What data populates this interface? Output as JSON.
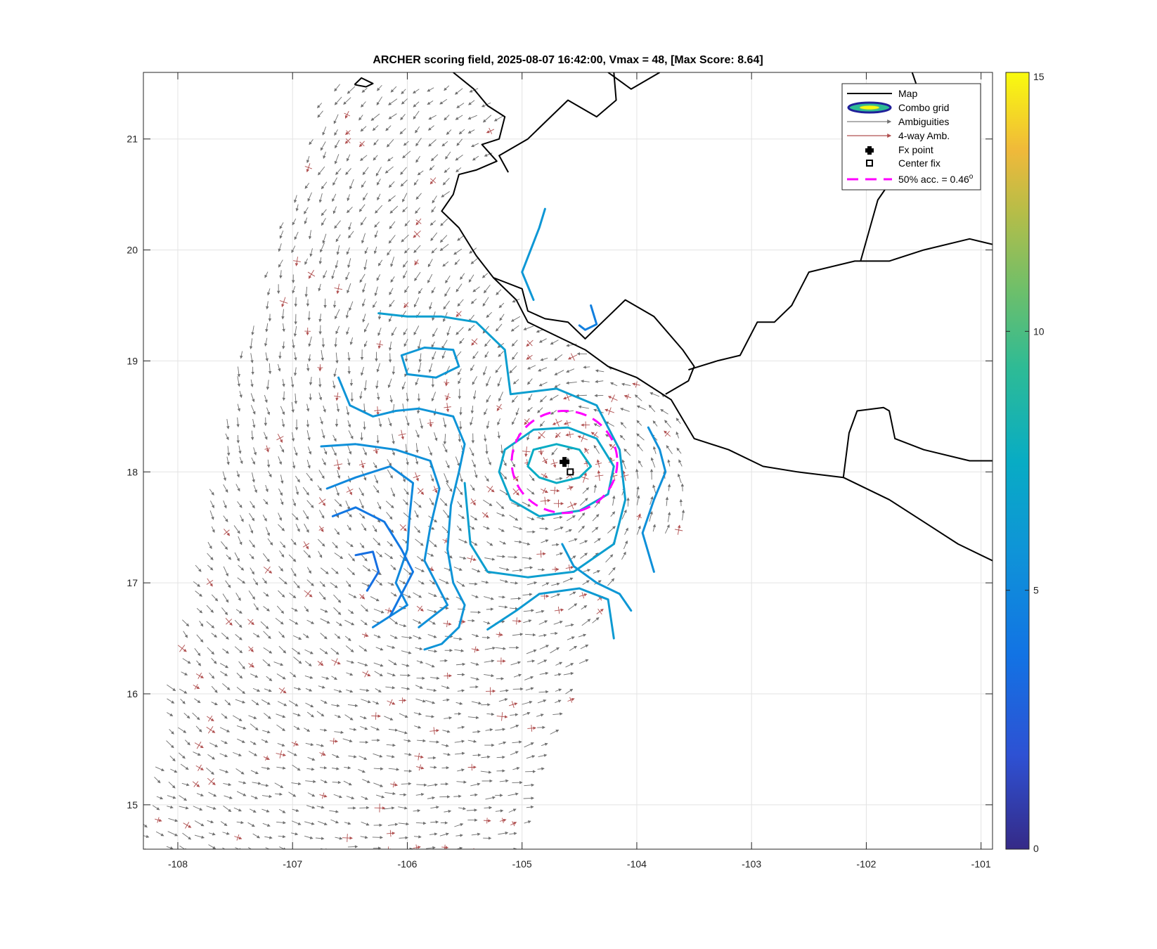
{
  "chart_data": {
    "type": "map",
    "title": "ARCHER scoring field, 2025-08-07 16:42:00, Vmax = 48, [Max Score: 8.64]",
    "xlim": [
      -108.3,
      -100.9
    ],
    "ylim": [
      14.6,
      21.6
    ],
    "xticks": [
      -108,
      -107,
      -106,
      -105,
      -104,
      -103,
      -102,
      -101
    ],
    "xtick_labels": [
      "-108",
      "-107",
      "-106",
      "-105",
      "-104",
      "-103",
      "-102",
      "-101"
    ],
    "yticks": [
      15,
      16,
      17,
      18,
      19,
      20,
      21
    ],
    "ytick_labels": [
      "15",
      "16",
      "17",
      "18",
      "19",
      "20",
      "21"
    ],
    "grid": true,
    "legend": {
      "placement": "top-right",
      "entries": [
        {
          "label": "Map",
          "style": "line",
          "color": "#000000"
        },
        {
          "label": "Combo grid",
          "style": "ellipse",
          "color": "#20209a"
        },
        {
          "label": "Ambiguities",
          "style": "arrow",
          "color": "#808080"
        },
        {
          "label": "4-way Amb.",
          "style": "arrow",
          "color": "#b05050"
        },
        {
          "label": "Fx point",
          "style": "plus",
          "color": "#000000"
        },
        {
          "label": "Center fix",
          "style": "square",
          "color": "#000000"
        },
        {
          "label": "50% acc. = 0.46",
          "superscript": "o",
          "style": "dash",
          "color": "#ff00ff"
        }
      ]
    },
    "fx_point": {
      "lon": -104.63,
      "lat": 18.09
    },
    "center_fix": {
      "lon": -104.58,
      "lat": 18.0
    },
    "accuracy_circle": {
      "lon": -104.63,
      "lat": 18.09,
      "radius_deg": 0.46,
      "color": "#ff00ff"
    },
    "colorbar": {
      "min": 0,
      "max": 15,
      "ticks": [
        0,
        5,
        10,
        15
      ],
      "tick_labels": [
        "0",
        "5",
        "10",
        "15"
      ],
      "colormap": "parula"
    },
    "coastline": [
      [
        -105.6,
        21.6
      ],
      [
        -105.42,
        21.45
      ],
      [
        -105.3,
        21.3
      ],
      [
        -105.15,
        21.2
      ],
      [
        -105.2,
        21.0
      ],
      [
        -105.35,
        20.95
      ],
      [
        -105.22,
        20.8
      ],
      [
        -105.4,
        20.72
      ],
      [
        -105.55,
        20.68
      ],
      [
        -105.6,
        20.5
      ],
      [
        -105.7,
        20.35
      ],
      [
        -105.55,
        20.2
      ],
      [
        -105.4,
        19.95
      ],
      [
        -105.25,
        19.75
      ],
      [
        -105.05,
        19.55
      ],
      [
        -104.95,
        19.35
      ],
      [
        -104.65,
        19.2
      ],
      [
        -104.45,
        19.1
      ],
      [
        -104.25,
        18.95
      ],
      [
        -104.0,
        18.85
      ],
      [
        -103.7,
        18.65
      ],
      [
        -103.5,
        18.3
      ],
      [
        -103.2,
        18.2
      ],
      [
        -102.9,
        18.05
      ],
      [
        -102.6,
        18.0
      ],
      [
        -102.2,
        17.95
      ],
      [
        -101.8,
        17.75
      ],
      [
        -101.5,
        17.55
      ],
      [
        -101.2,
        17.35
      ],
      [
        -100.9,
        17.2
      ]
    ],
    "state_borders": [
      [
        [
          -105.12,
          20.7
        ],
        [
          -105.2,
          20.85
        ],
        [
          -104.95,
          21.0
        ],
        [
          -104.75,
          21.2
        ],
        [
          -104.6,
          21.35
        ],
        [
          -104.35,
          21.2
        ],
        [
          -104.18,
          21.35
        ],
        [
          -104.2,
          21.6
        ]
      ],
      [
        [
          -105.25,
          19.75
        ],
        [
          -105.0,
          19.65
        ],
        [
          -104.95,
          19.45
        ],
        [
          -104.8,
          19.38
        ],
        [
          -104.6,
          19.35
        ],
        [
          -104.45,
          19.2
        ],
        [
          -104.3,
          19.35
        ],
        [
          -104.1,
          19.55
        ],
        [
          -103.85,
          19.4
        ],
        [
          -103.6,
          19.1
        ],
        [
          -103.5,
          18.95
        ],
        [
          -103.55,
          18.82
        ],
        [
          -103.75,
          18.7
        ]
      ],
      [
        [
          -103.55,
          18.92
        ],
        [
          -103.3,
          19.0
        ],
        [
          -103.1,
          19.05
        ],
        [
          -102.95,
          19.35
        ],
        [
          -102.8,
          19.35
        ],
        [
          -102.65,
          19.5
        ],
        [
          -102.5,
          19.8
        ],
        [
          -102.1,
          19.9
        ],
        [
          -101.8,
          19.9
        ],
        [
          -101.5,
          20.0
        ],
        [
          -101.1,
          20.1
        ],
        [
          -100.9,
          20.05
        ]
      ],
      [
        [
          -102.05,
          19.9
        ],
        [
          -101.9,
          20.45
        ],
        [
          -101.6,
          20.9
        ],
        [
          -101.4,
          21.0
        ],
        [
          -101.6,
          21.6
        ]
      ],
      [
        [
          -102.2,
          17.95
        ],
        [
          -102.15,
          18.35
        ],
        [
          -102.08,
          18.55
        ],
        [
          -101.85,
          18.58
        ],
        [
          -101.8,
          18.55
        ],
        [
          -101.75,
          18.3
        ],
        [
          -101.5,
          18.2
        ],
        [
          -101.1,
          18.1
        ],
        [
          -100.9,
          18.1
        ]
      ],
      [
        [
          -104.25,
          21.6
        ],
        [
          -104.05,
          21.45
        ],
        [
          -103.8,
          21.6
        ]
      ]
    ],
    "islands": [
      [
        [
          -106.46,
          21.49
        ],
        [
          -106.36,
          21.47
        ],
        [
          -106.3,
          21.5
        ],
        [
          -106.4,
          21.55
        ],
        [
          -106.46,
          21.49
        ]
      ]
    ],
    "contours": [
      {
        "level": 7.5,
        "points": [
          [
            -104.95,
            18.05
          ],
          [
            -104.85,
            17.95
          ],
          [
            -104.7,
            17.9
          ],
          [
            -104.5,
            17.95
          ],
          [
            -104.4,
            18.05
          ],
          [
            -104.5,
            18.2
          ],
          [
            -104.7,
            18.25
          ],
          [
            -104.9,
            18.2
          ],
          [
            -104.95,
            18.05
          ]
        ]
      },
      {
        "level": 7.0,
        "points": [
          [
            -105.2,
            18.0
          ],
          [
            -105.1,
            17.75
          ],
          [
            -104.85,
            17.6
          ],
          [
            -104.5,
            17.65
          ],
          [
            -104.25,
            17.8
          ],
          [
            -104.2,
            18.05
          ],
          [
            -104.35,
            18.3
          ],
          [
            -104.6,
            18.4
          ],
          [
            -104.9,
            18.38
          ],
          [
            -105.15,
            18.2
          ],
          [
            -105.2,
            18.0
          ]
        ]
      },
      {
        "level": 6.5,
        "points": [
          [
            -105.5,
            17.9
          ],
          [
            -105.45,
            17.35
          ],
          [
            -105.3,
            17.1
          ],
          [
            -104.95,
            17.05
          ],
          [
            -104.55,
            17.1
          ],
          [
            -104.2,
            17.35
          ],
          [
            -104.1,
            17.75
          ],
          [
            -104.15,
            18.2
          ],
          [
            -104.35,
            18.6
          ],
          [
            -104.7,
            18.75
          ],
          [
            -105.1,
            18.7
          ],
          [
            -105.15,
            19.1
          ],
          [
            -105.4,
            19.35
          ],
          [
            -105.7,
            19.4
          ],
          [
            -106.0,
            19.4
          ],
          [
            -106.25,
            19.43
          ]
        ]
      },
      {
        "level": 6.0,
        "points": [
          [
            -106.05,
            19.05
          ],
          [
            -105.85,
            19.12
          ],
          [
            -105.6,
            19.1
          ],
          [
            -105.55,
            18.95
          ],
          [
            -105.75,
            18.85
          ],
          [
            -106.0,
            18.88
          ],
          [
            -106.05,
            19.05
          ]
        ]
      },
      {
        "level": 5.8,
        "points": [
          [
            -106.6,
            18.85
          ],
          [
            -106.5,
            18.6
          ],
          [
            -106.3,
            18.5
          ],
          [
            -106.1,
            18.55
          ],
          [
            -105.9,
            18.57
          ],
          [
            -105.6,
            18.5
          ],
          [
            -105.5,
            18.25
          ],
          [
            -105.55,
            18.0
          ],
          [
            -105.62,
            17.7
          ],
          [
            -105.65,
            17.3
          ],
          [
            -105.6,
            17.0
          ],
          [
            -105.5,
            16.8
          ],
          [
            -105.55,
            16.6
          ],
          [
            -105.7,
            16.45
          ],
          [
            -105.85,
            16.4
          ]
        ]
      },
      {
        "level": 5.5,
        "points": [
          [
            -106.75,
            18.23
          ],
          [
            -106.45,
            18.25
          ],
          [
            -106.1,
            18.2
          ],
          [
            -105.8,
            18.1
          ],
          [
            -105.72,
            17.85
          ],
          [
            -105.8,
            17.5
          ],
          [
            -105.85,
            17.2
          ],
          [
            -105.75,
            17.0
          ],
          [
            -105.65,
            16.8
          ],
          [
            -105.9,
            16.6
          ]
        ]
      },
      {
        "level": 5.0,
        "points": [
          [
            -106.7,
            17.85
          ],
          [
            -106.45,
            17.95
          ],
          [
            -106.15,
            18.05
          ],
          [
            -105.95,
            17.9
          ],
          [
            -105.98,
            17.6
          ],
          [
            -106.0,
            17.3
          ],
          [
            -106.1,
            17.0
          ],
          [
            -106.0,
            16.8
          ],
          [
            -106.3,
            16.6
          ]
        ]
      },
      {
        "level": 4.0,
        "points": [
          [
            -106.65,
            17.6
          ],
          [
            -106.45,
            17.68
          ],
          [
            -106.2,
            17.55
          ],
          [
            -106.05,
            17.3
          ],
          [
            -105.95,
            17.1
          ],
          [
            -106.05,
            16.9
          ],
          [
            -106.15,
            16.7
          ]
        ]
      },
      {
        "level": 3.5,
        "points": [
          [
            -106.45,
            17.25
          ],
          [
            -106.3,
            17.28
          ],
          [
            -106.25,
            17.1
          ],
          [
            -106.35,
            16.93
          ]
        ]
      },
      {
        "level": 6.0,
        "points": [
          [
            -104.9,
            19.55
          ],
          [
            -105.0,
            19.8
          ],
          [
            -104.85,
            20.2
          ],
          [
            -104.8,
            20.37
          ]
        ]
      },
      {
        "level": 4.5,
        "points": [
          [
            -104.5,
            19.32
          ],
          [
            -104.45,
            19.28
          ],
          [
            -104.35,
            19.33
          ],
          [
            -104.4,
            19.5
          ]
        ]
      },
      {
        "level": 5.5,
        "points": [
          [
            -103.9,
            18.4
          ],
          [
            -103.8,
            18.2
          ],
          [
            -103.75,
            18.0
          ],
          [
            -103.85,
            17.75
          ],
          [
            -103.95,
            17.45
          ],
          [
            -103.85,
            17.1
          ]
        ]
      },
      {
        "level": 6.0,
        "points": [
          [
            -104.05,
            16.75
          ],
          [
            -104.15,
            16.9
          ],
          [
            -104.35,
            17.0
          ],
          [
            -104.55,
            17.15
          ],
          [
            -104.65,
            17.35
          ]
        ]
      },
      {
        "level": 6.2,
        "points": [
          [
            -104.2,
            16.5
          ],
          [
            -104.25,
            16.85
          ],
          [
            -104.5,
            16.95
          ],
          [
            -104.85,
            16.9
          ],
          [
            -105.05,
            16.75
          ],
          [
            -105.3,
            16.58
          ]
        ]
      }
    ]
  }
}
